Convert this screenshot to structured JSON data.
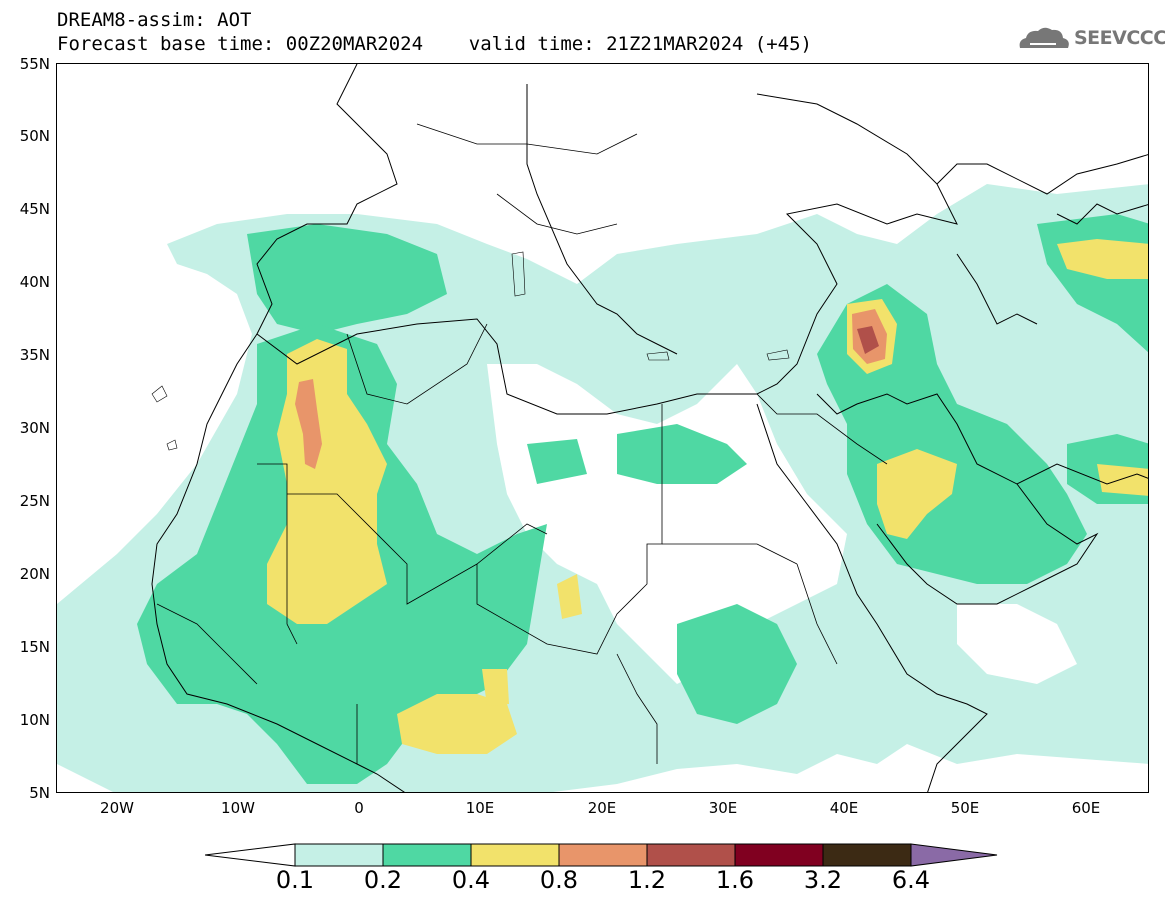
{
  "header": {
    "line1": "DREAM8-assim: AOT",
    "line2": "Forecast base time: 00Z20MAR2024    valid time: 21Z21MAR2024 (+45)"
  },
  "logo": {
    "text": "SEEVCCC",
    "icon": "cloud-icon"
  },
  "map": {
    "lon_range": [
      -25,
      65
    ],
    "lat_range": [
      5,
      55
    ],
    "lat_labels": [
      "55N",
      "50N",
      "45N",
      "40N",
      "35N",
      "30N",
      "25N",
      "20N",
      "15N",
      "10N",
      "5N"
    ],
    "lon_labels": [
      "20W",
      "10W",
      "0",
      "10E",
      "20E",
      "30E",
      "40E",
      "50E",
      "60E"
    ]
  },
  "colorbar": {
    "levels": [
      "0.1",
      "0.2",
      "0.4",
      "0.8",
      "1.2",
      "1.6",
      "3.2",
      "6.4"
    ],
    "colors": [
      "#ffffff",
      "#c5f0e6",
      "#4fd8a3",
      "#f2e26b",
      "#e8956a",
      "#b0504a",
      "#800020",
      "#3c2a14",
      "#8a6aa6"
    ]
  }
}
